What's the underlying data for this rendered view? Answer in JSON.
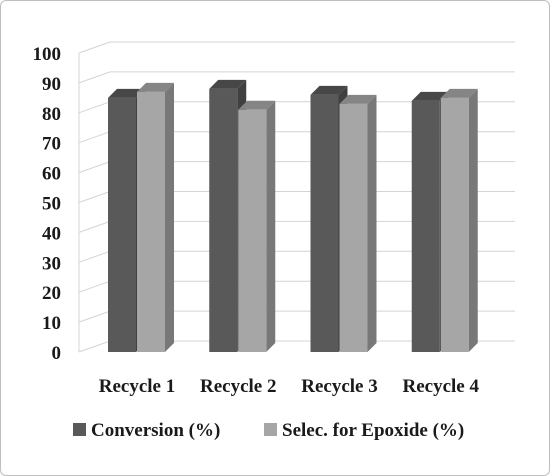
{
  "chart_data": {
    "type": "bar",
    "style": "3d-clustered-column",
    "title": "",
    "xlabel": "",
    "ylabel": "",
    "ylim": [
      0,
      100
    ],
    "yticks": [
      0,
      10,
      20,
      30,
      40,
      50,
      60,
      70,
      80,
      90,
      100
    ],
    "categories": [
      "Recycle 1",
      "Recycle 2",
      "Recycle 3",
      "Recycle 4"
    ],
    "series": [
      {
        "name": "Conversion (%)",
        "values": [
          85,
          88,
          86,
          84
        ],
        "color": "#595959"
      },
      {
        "name": "Selec. for Epoxide (%)",
        "values": [
          87,
          81,
          83,
          85
        ],
        "color": "#a6a6a6"
      }
    ],
    "grid": true,
    "legend": "bottom"
  }
}
